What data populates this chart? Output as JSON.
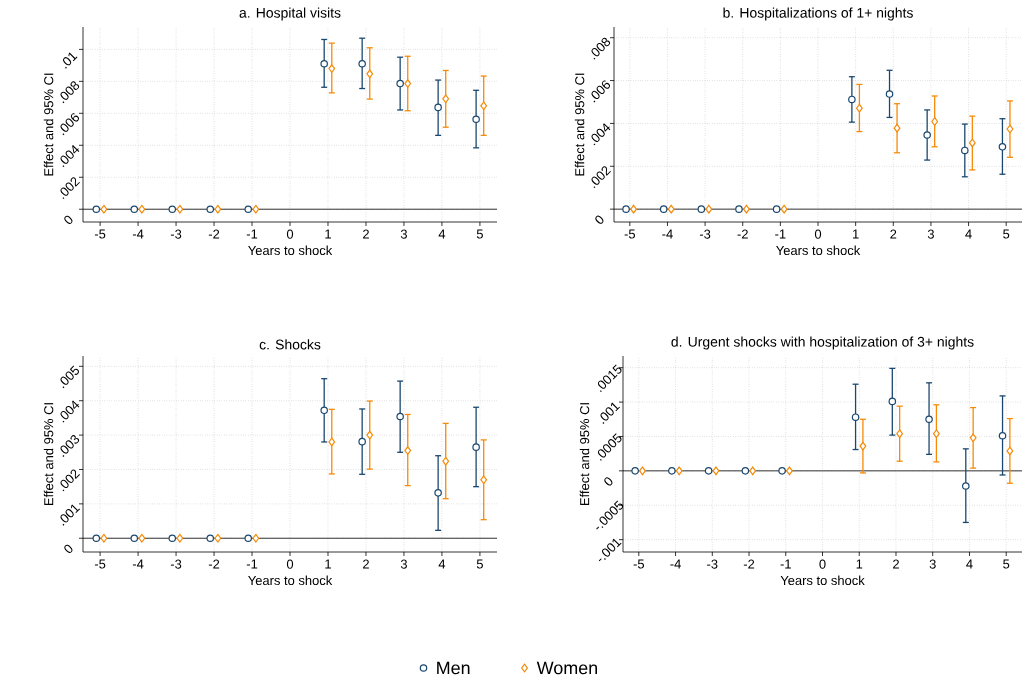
{
  "chart_data": [
    {
      "type": "scatter",
      "title": "a. Hospital visits",
      "xlabel": "Years to shock",
      "ylabel": "Effect and 95% CI",
      "xlim": [
        -5.45,
        5.45
      ],
      "xticks": [
        -5,
        -4,
        -3,
        -2,
        -1,
        0,
        1,
        2,
        3,
        4,
        5
      ],
      "ylim": [
        -0.0008,
        0.0114
      ],
      "yticks": [
        0,
        {
          "value": 0.002,
          "label": ".002"
        },
        {
          "value": 0.004,
          "label": ".004"
        },
        {
          "value": 0.006,
          "label": ".006"
        },
        {
          "value": 0.008,
          "label": ".008"
        },
        {
          "value": 0.01,
          "label": ".01"
        }
      ],
      "grid": true,
      "ref_lines": [
        {
          "axis": "y",
          "value": 0,
          "color": "#000000"
        }
      ],
      "series": [
        {
          "color": "#1a476f",
          "marker": "circle",
          "x": [
            -5.1,
            -4.1,
            -3.1,
            -2.1,
            -1.1,
            0.9,
            1.9,
            2.9,
            3.9,
            4.9
          ],
          "values": [
            0,
            0,
            0,
            0,
            0,
            0.0091,
            0.0091,
            0.00786,
            0.00637,
            0.00563
          ],
          "errors": [
            null,
            null,
            null,
            null,
            null,
            [
              0.00763,
              0.01062
            ],
            [
              0.00755,
              0.0107
            ],
            [
              0.00621,
              0.00951
            ],
            [
              0.00462,
              0.00808
            ],
            [
              0.00384,
              0.00744
            ]
          ]
        },
        {
          "color": "#f58a07",
          "marker": "diamond",
          "x": [
            -4.9,
            -3.9,
            -2.9,
            -1.9,
            -0.9,
            1.1,
            2.1,
            3.1,
            4.1,
            5.1
          ],
          "values": [
            0,
            0,
            0,
            0,
            0,
            0.0088,
            0.00847,
            0.00786,
            0.00691,
            0.00647
          ],
          "errors": [
            null,
            null,
            null,
            null,
            null,
            [
              0.00728,
              0.01039
            ],
            [
              0.00689,
              0.0101
            ],
            [
              0.00616,
              0.00957
            ],
            [
              0.00513,
              0.00868
            ],
            [
              0.00462,
              0.00833
            ]
          ]
        }
      ]
    },
    {
      "type": "scatter",
      "title": "b. Hospitalizations of 1+ nights",
      "xlabel": "Years to shock",
      "ylabel": "Effect and 95% CI",
      "xlim": [
        -5.42,
        5.42
      ],
      "xticks": [
        -5,
        -4,
        -3,
        -2,
        -1,
        0,
        1,
        2,
        3,
        4,
        5
      ],
      "ylim": [
        -0.0006,
        0.0085
      ],
      "yticks": [
        0,
        {
          "value": 0.002,
          "label": ".002"
        },
        {
          "value": 0.004,
          "label": ".004"
        },
        {
          "value": 0.006,
          "label": ".006"
        },
        {
          "value": 0.008,
          "label": ".008"
        }
      ],
      "grid": true,
      "ref_lines": [
        {
          "axis": "y",
          "value": 0,
          "color": "#000000"
        }
      ],
      "series": [
        {
          "color": "#1a476f",
          "marker": "circle",
          "x": [
            -5.1,
            -4.1,
            -3.1,
            -2.1,
            -1.1,
            0.9,
            1.9,
            2.9,
            3.9,
            4.9
          ],
          "values": [
            0,
            0,
            0,
            0,
            0,
            0.00512,
            0.00537,
            0.00346,
            0.00274,
            0.00291
          ],
          "errors": [
            null,
            null,
            null,
            null,
            null,
            [
              0.00406,
              0.00618
            ],
            [
              0.00428,
              0.00648
            ],
            [
              0.00229,
              0.00463
            ],
            [
              0.00151,
              0.00397
            ],
            [
              0.00163,
              0.00422
            ]
          ]
        },
        {
          "color": "#f58a07",
          "marker": "diamond",
          "x": [
            -4.9,
            -3.9,
            -2.9,
            -1.9,
            -0.9,
            1.1,
            2.1,
            3.1,
            4.1,
            5.1
          ],
          "values": [
            0,
            0,
            0,
            0,
            0,
            0.00471,
            0.00378,
            0.00409,
            0.00309,
            0.00374
          ],
          "errors": [
            null,
            null,
            null,
            null,
            null,
            [
              0.00362,
              0.00582
            ],
            [
              0.00263,
              0.00492
            ],
            [
              0.00291,
              0.00528
            ],
            [
              0.00183,
              0.00434
            ],
            [
              0.00242,
              0.00505
            ]
          ]
        }
      ]
    },
    {
      "type": "scatter",
      "title": "c. Shocks",
      "xlabel": "Years to shock",
      "ylabel": "Effect and 95% CI",
      "xlim": [
        -5.45,
        5.45
      ],
      "xticks": [
        -5,
        -4,
        -3,
        -2,
        -1,
        0,
        1,
        2,
        3,
        4,
        5
      ],
      "ylim": [
        -0.0004,
        0.0053
      ],
      "yticks": [
        0,
        {
          "value": 0.001,
          "label": ".001"
        },
        {
          "value": 0.002,
          "label": ".002"
        },
        {
          "value": 0.003,
          "label": ".003"
        },
        {
          "value": 0.004,
          "label": ".004"
        },
        {
          "value": 0.005,
          "label": ".005"
        }
      ],
      "grid": true,
      "ref_lines": [
        {
          "axis": "y",
          "value": 0,
          "color": "#000000"
        }
      ],
      "series": [
        {
          "color": "#1a476f",
          "marker": "circle",
          "x": [
            -5.1,
            -4.1,
            -3.1,
            -2.1,
            -1.1,
            0.9,
            1.9,
            2.9,
            3.9,
            4.9
          ],
          "values": [
            0,
            0,
            0,
            0,
            0,
            0.00372,
            0.00281,
            0.00354,
            0.00132,
            0.00265
          ],
          "errors": [
            null,
            null,
            null,
            null,
            null,
            [
              0.0028,
              0.00464
            ],
            [
              0.00186,
              0.00376
            ],
            [
              0.0025,
              0.00457
            ],
            [
              0.00023,
              0.0024
            ],
            [
              0.0015,
              0.00381
            ]
          ]
        },
        {
          "color": "#f58a07",
          "marker": "diamond",
          "x": [
            -4.9,
            -3.9,
            -2.9,
            -1.9,
            -0.9,
            1.1,
            2.1,
            3.1,
            4.1,
            5.1
          ],
          "values": [
            0,
            0,
            0,
            0,
            0,
            0.0028,
            0.003,
            0.00255,
            0.00224,
            0.0017
          ],
          "errors": [
            null,
            null,
            null,
            null,
            null,
            [
              0.00187,
              0.00375
            ],
            [
              0.00201,
              0.00399
            ],
            [
              0.00153,
              0.0036
            ],
            [
              0.00115,
              0.00334
            ],
            [
              0.00054,
              0.00286
            ]
          ]
        }
      ]
    },
    {
      "type": "scatter",
      "title": "d. Urgent shocks with hospitalization of 3+ nights",
      "xlabel": "Years to shock",
      "ylabel": "Effect and 95% CI",
      "xlim": [
        -5.43,
        5.43
      ],
      "xticks": [
        -5,
        -4,
        -3,
        -2,
        -1,
        0,
        1,
        2,
        3,
        4,
        5
      ],
      "ylim": [
        -0.00118,
        0.00167
      ],
      "yticks": [
        {
          "value": -0.001,
          "label": "-.001"
        },
        {
          "value": -0.0005,
          "label": "-.0005"
        },
        0,
        {
          "value": 0.0005,
          "label": ".0005"
        },
        {
          "value": 0.001,
          "label": ".001"
        },
        {
          "value": 0.0015,
          "label": ".0015"
        }
      ],
      "grid": true,
      "ref_lines": [
        {
          "axis": "y",
          "value": 0,
          "color": "#000000"
        }
      ],
      "legend": "bottom",
      "series": [
        {
          "name": "Men",
          "color": "#1a476f",
          "marker": "circle",
          "x": [
            -5.1,
            -4.1,
            -3.1,
            -2.1,
            -1.1,
            0.9,
            1.9,
            2.9,
            3.9,
            4.9
          ],
          "values": [
            0,
            0,
            0,
            0,
            0,
            0.00078,
            0.00101,
            0.00075,
            -0.00022,
            0.00051
          ],
          "errors": [
            null,
            null,
            null,
            null,
            null,
            [
              0.00031,
              0.00126
            ],
            [
              0.00052,
              0.00149
            ],
            [
              0.00024,
              0.00128
            ],
            [
              -0.00075,
              0.00032
            ],
            [
              -6e-05,
              0.00109
            ]
          ]
        },
        {
          "name": "Women",
          "color": "#f58a07",
          "marker": "diamond",
          "x": [
            -4.9,
            -3.9,
            -2.9,
            -1.9,
            -0.9,
            1.1,
            2.1,
            3.1,
            4.1,
            5.1
          ],
          "values": [
            0,
            0,
            0,
            0,
            0,
            0.00036,
            0.00054,
            0.00054,
            0.00048,
            0.00029
          ],
          "errors": [
            null,
            null,
            null,
            null,
            null,
            [
              -3e-05,
              0.00075
            ],
            [
              0.00014,
              0.00094
            ],
            [
              0.00013,
              0.00096
            ],
            [
              4e-05,
              0.00092
            ],
            [
              -0.00018,
              0.00076
            ]
          ]
        }
      ]
    }
  ]
}
